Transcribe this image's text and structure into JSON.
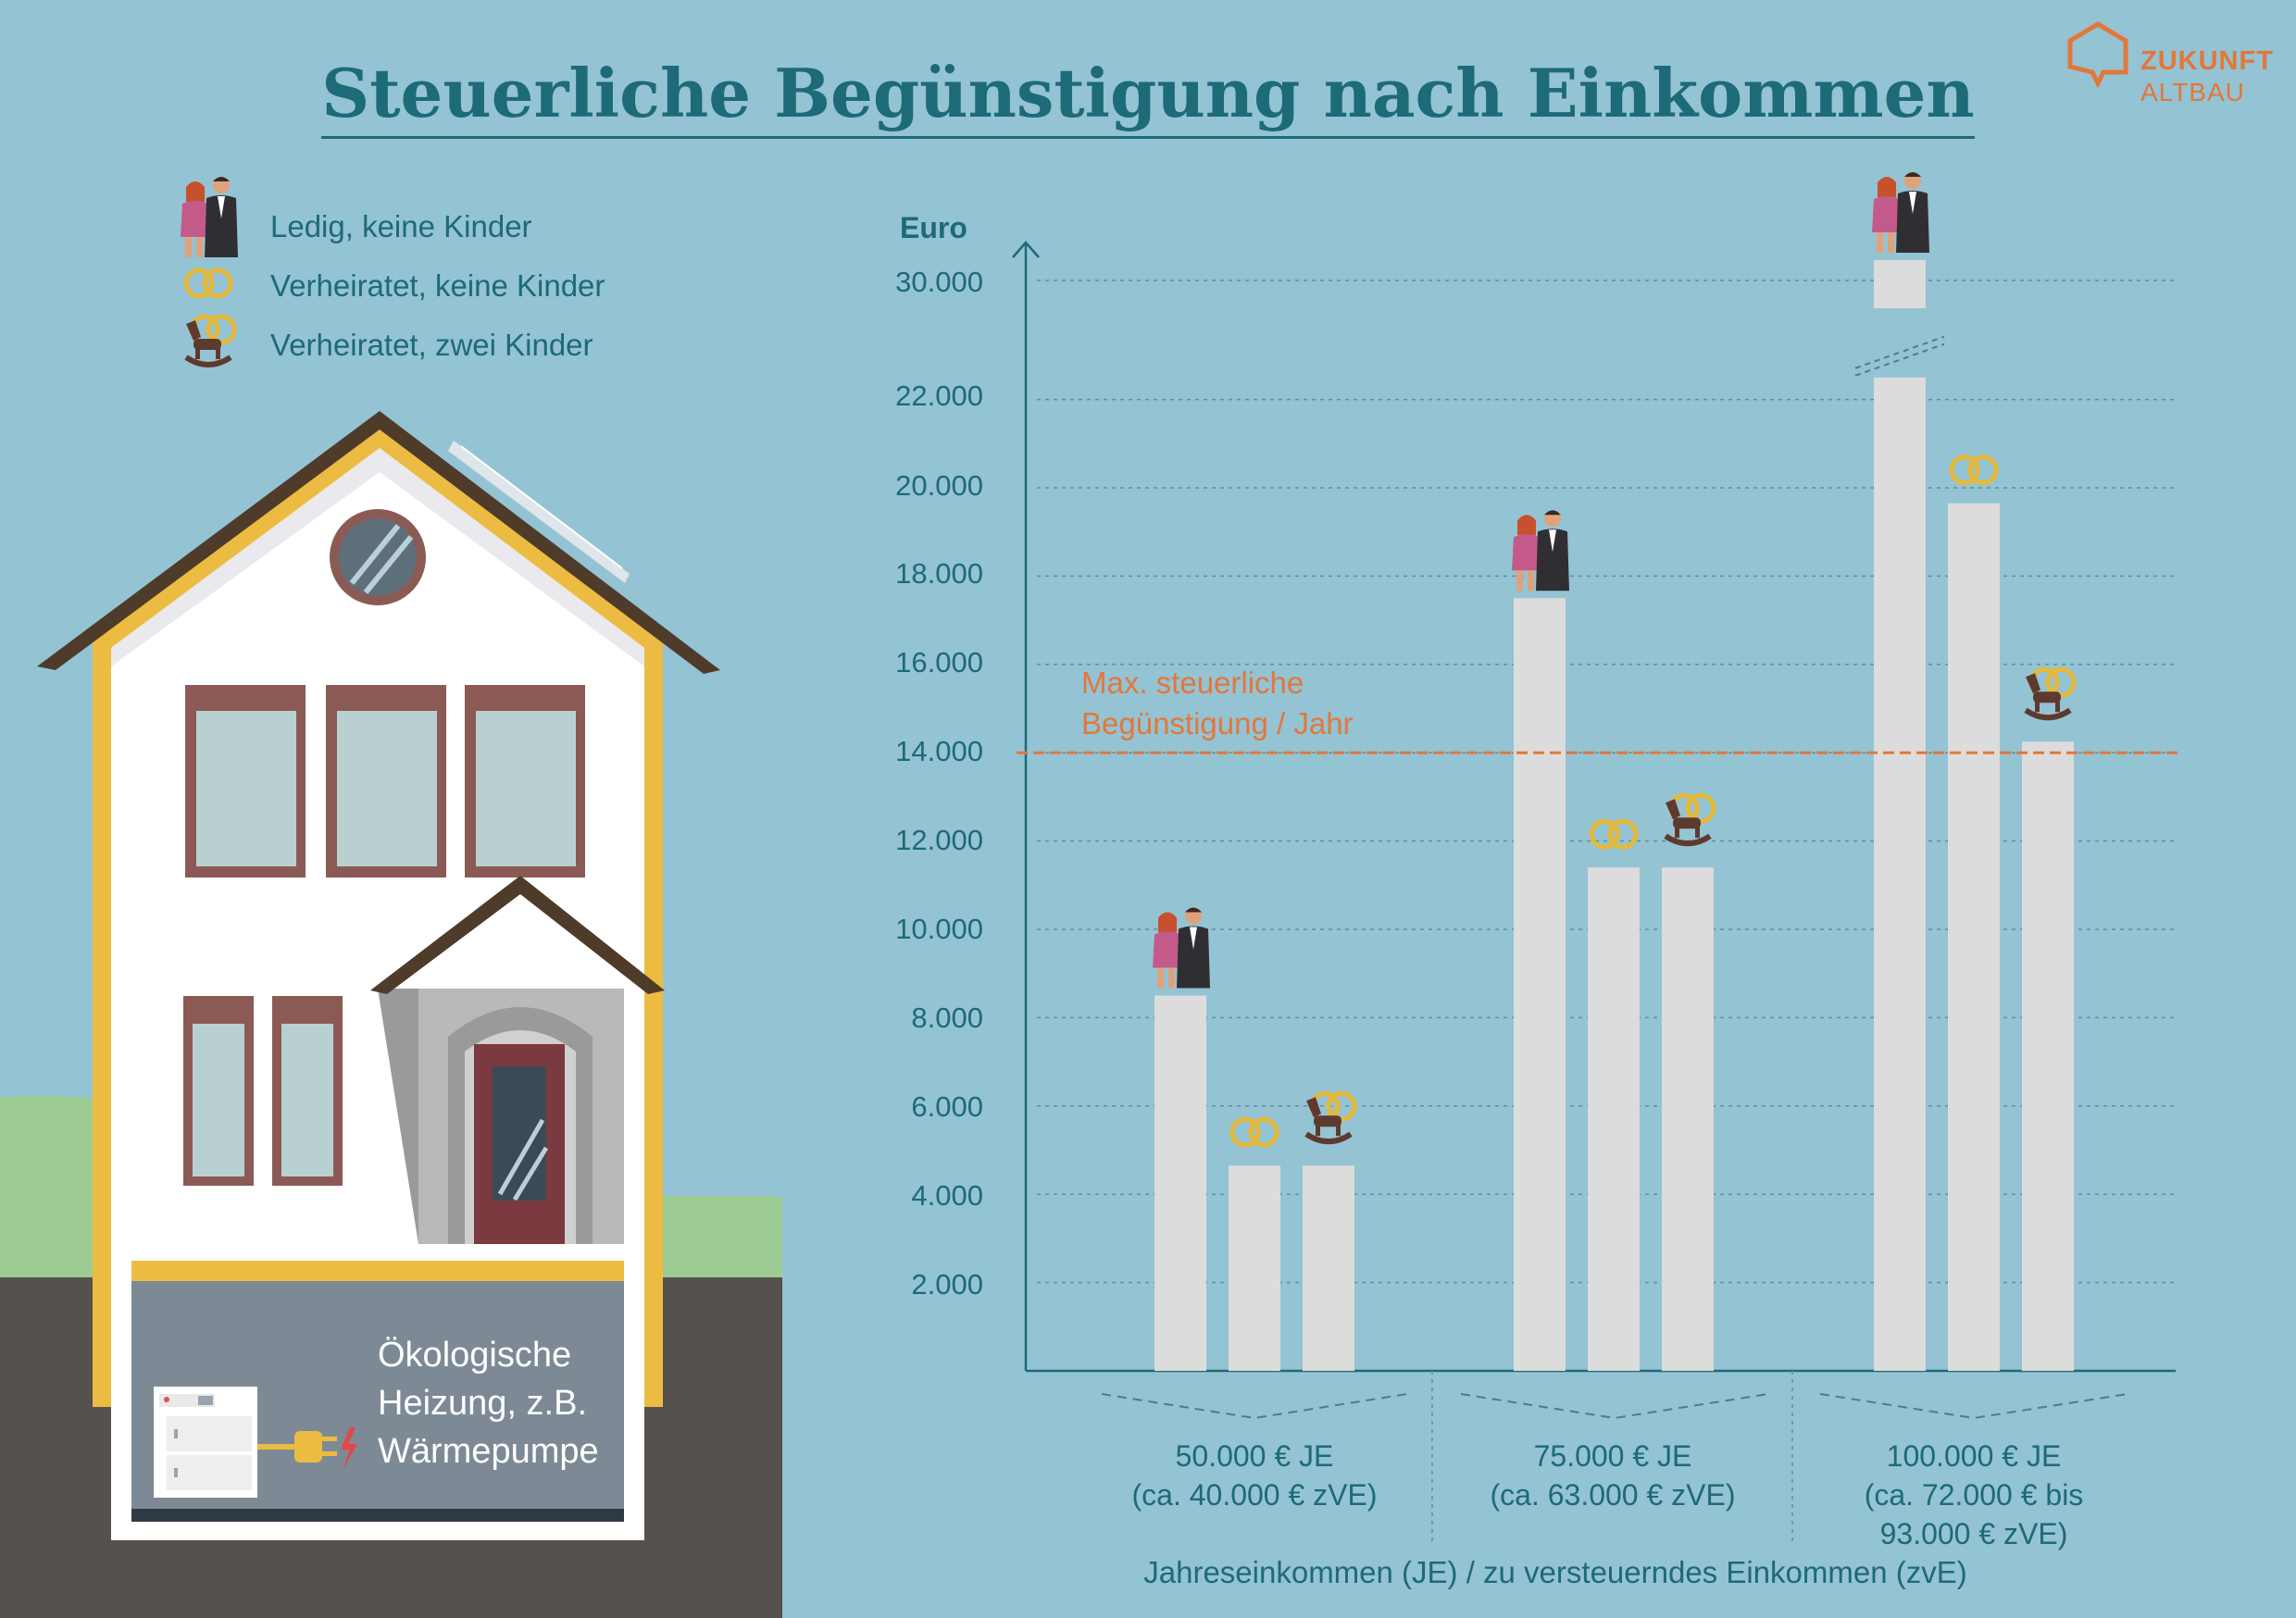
{
  "title": "Steuerliche Begünstigung nach Einkommen",
  "logo": {
    "line1": "ZUKUNFT",
    "line2": "ALTBAU",
    "icon": "house-speech-icon"
  },
  "legend": [
    {
      "icon": "couple-icon",
      "label": "Ledig, keine Kinder"
    },
    {
      "icon": "wedding-rings-icon",
      "label": "Verheiratet, keine Kinder"
    },
    {
      "icon": "rocking-horse-rings-icon",
      "label": "Verheiratet, zwei Kinder"
    }
  ],
  "heating_label": [
    "Ökologische",
    "Heizung, z.B.",
    "Wärmepumpe"
  ],
  "colors": {
    "background": "#94c3d4",
    "text": "#1d6a78",
    "accent": "#e3773a",
    "bar": "#dcdcdc"
  },
  "chart_data": {
    "type": "bar",
    "ylabel": "Euro",
    "xlabel": "Jahreseinkommen (JE) / zu versteuerndes Einkommen (zvE)",
    "yticks": [
      "2.000",
      "4.000",
      "6.000",
      "8.000",
      "10.000",
      "12.000",
      "14.000",
      "16.000",
      "18.000",
      "20.000",
      "22.000",
      "30.000"
    ],
    "axis_break": true,
    "categories": [
      [
        "50.000 € JE",
        "(ca. 40.000 € zVE)"
      ],
      [
        "75.000 € JE",
        "(ca. 63.000 € zVE)"
      ],
      [
        "100.000 € JE",
        "(ca. 72.000 € bis",
        "93.000  € zVE)"
      ]
    ],
    "series": [
      {
        "name": "Ledig, keine Kinder",
        "icon": "couple-icon",
        "values": [
          8500,
          17500,
          30000
        ]
      },
      {
        "name": "Verheiratet, keine Kinder",
        "icon": "wedding-rings-icon",
        "values": [
          4650,
          11400,
          19650
        ]
      },
      {
        "name": "Verheiratet, zwei Kinder",
        "icon": "rocking-horse-rings-icon",
        "values": [
          4650,
          11400,
          14250
        ]
      }
    ],
    "reference_line": {
      "value": 14000,
      "label": [
        "Max. steuerliche",
        "Begünstigung / Jahr"
      ]
    },
    "grid": true
  }
}
